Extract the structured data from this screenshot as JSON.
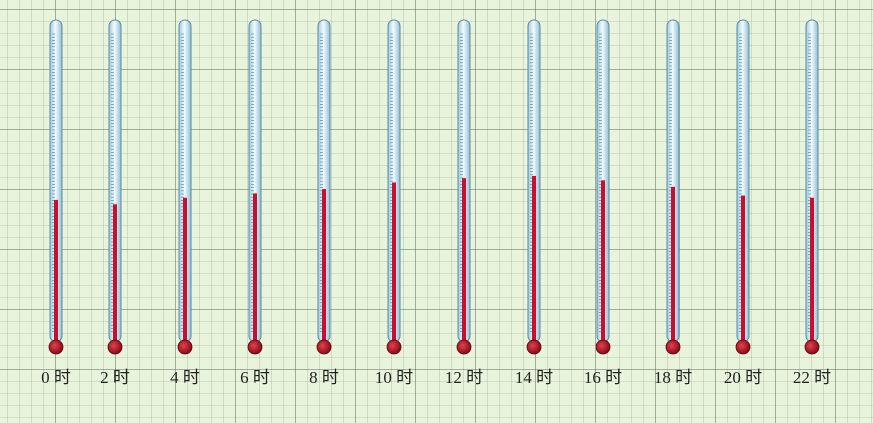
{
  "chart_data": {
    "type": "thermometer",
    "categories": [
      "0 时",
      "2 时",
      "4 时",
      "6 时",
      "8 时",
      "10 时",
      "12 时",
      "14 时",
      "16 时",
      "18 时",
      "20 时",
      "22 时"
    ],
    "values": [
      11,
      10,
      11.5,
      12.5,
      13.5,
      15,
      16,
      16.5,
      15.5,
      14,
      12,
      11.5
    ],
    "color": "#c8102e",
    "ylim": [
      -20,
      50
    ]
  }
}
